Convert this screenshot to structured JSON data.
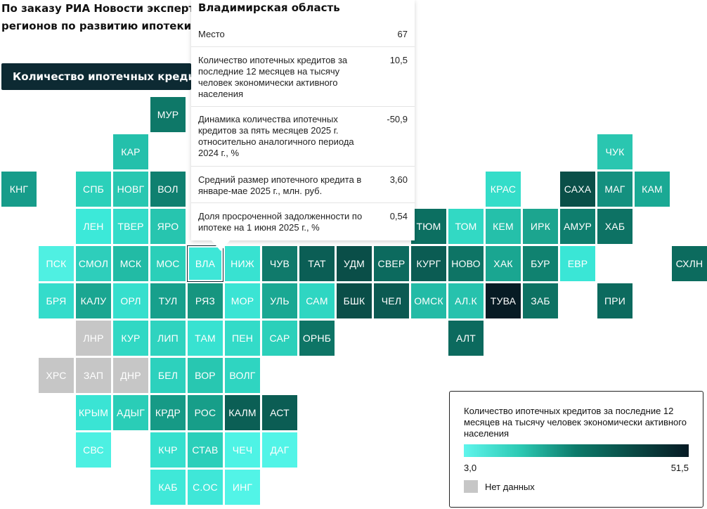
{
  "header": {
    "title": "По заказу РИА Новости эксперты регионов по развитию ипотеки"
  },
  "metric_select": {
    "label": "Количество ипотечных креди..."
  },
  "tooltip": {
    "region": "Владимирская область",
    "rows": [
      {
        "label": "Место",
        "value": "67"
      },
      {
        "label": "Количество ипотечных кредитов за последние 12 месяцев на тысячу человек экономически активного населения",
        "value": "10,5"
      },
      {
        "label": "Динамика количества ипотечных кредитов за пять месяцев 2025 г. относительно аналогичного периода 2024 г., %",
        "value": "-50,9"
      },
      {
        "label": "Средний размер ипотечного кредита в январе-мае 2025 г., млн. руб.",
        "value": "3,60"
      },
      {
        "label": "Доля просроченной задолженности по ипотеке на 1 июня 2025 г., %",
        "value": "0,54"
      }
    ]
  },
  "legend": {
    "title": "Количество ипотечных кредитов за последние 12 месяцев на тысячу человек экономически активного населения",
    "min_label": "3,0",
    "max_label": "51,5",
    "nodata_label": "Нет данных",
    "nodata_color": "#c6c6c6"
  },
  "tiles": [
    {
      "label": "МУР",
      "row": 0,
      "col": 4,
      "color": "#0e7868"
    },
    {
      "label": "КАР",
      "row": 1,
      "col": 3,
      "color": "#24c0ab"
    },
    {
      "label": "ЧУК",
      "row": 1,
      "col": 16,
      "color": "#2ac6b0"
    },
    {
      "label": "КНГ",
      "row": 2,
      "col": 0,
      "color": "#179c8a"
    },
    {
      "label": "СПБ",
      "row": 2,
      "col": 2,
      "color": "#2bd0ba"
    },
    {
      "label": "НОВГ",
      "row": 2,
      "col": 3,
      "color": "#29c7b1"
    },
    {
      "label": "ВОЛ",
      "row": 2,
      "col": 4,
      "color": "#0f8070"
    },
    {
      "label": "КРАС",
      "row": 2,
      "col": 13,
      "color": "#34ddc9"
    },
    {
      "label": "САХА",
      "row": 2,
      "col": 15,
      "color": "#0a4f48"
    },
    {
      "label": "МАГ",
      "row": 2,
      "col": 16,
      "color": "#14907f"
    },
    {
      "label": "КАМ",
      "row": 2,
      "col": 17,
      "color": "#1aa994"
    },
    {
      "label": "ЛЕН",
      "row": 3,
      "col": 2,
      "color": "#3ce9d9"
    },
    {
      "label": "ТВЕР",
      "row": 3,
      "col": 3,
      "color": "#33dcc9"
    },
    {
      "label": "ЯРО",
      "row": 3,
      "col": 4,
      "color": "#27c5af"
    },
    {
      "label": "ТЮМ",
      "row": 3,
      "col": 11,
      "color": "#0c6f61"
    },
    {
      "label": "ТОМ",
      "row": 3,
      "col": 12,
      "color": "#32d9c4"
    },
    {
      "label": "КЕМ",
      "row": 3,
      "col": 13,
      "color": "#25c0aa"
    },
    {
      "label": "ИРК",
      "row": 3,
      "col": 14,
      "color": "#1ca58f"
    },
    {
      "label": "АМУР",
      "row": 3,
      "col": 15,
      "color": "#0f7e6e"
    },
    {
      "label": "ХАБ",
      "row": 3,
      "col": 16,
      "color": "#0d7264"
    },
    {
      "label": "ПСК",
      "row": 4,
      "col": 1,
      "color": "#4ff0e2"
    },
    {
      "label": "СМОЛ",
      "row": 4,
      "col": 2,
      "color": "#2ecebb"
    },
    {
      "label": "МСК",
      "row": 4,
      "col": 3,
      "color": "#22bba5"
    },
    {
      "label": "МОС",
      "row": 4,
      "col": 4,
      "color": "#2bcfb9"
    },
    {
      "label": "ВЛА",
      "row": 4,
      "col": 5,
      "color": "#3ee6d7",
      "selected": true
    },
    {
      "label": "НИЖ",
      "row": 4,
      "col": 6,
      "color": "#38e2d1"
    },
    {
      "label": "ЧУВ",
      "row": 4,
      "col": 7,
      "color": "#107a6b"
    },
    {
      "label": "ТАТ",
      "row": 4,
      "col": 8,
      "color": "#0b5e55"
    },
    {
      "label": "УДМ",
      "row": 4,
      "col": 9,
      "color": "#0a4e48"
    },
    {
      "label": "СВЕР",
      "row": 4,
      "col": 10,
      "color": "#0c6a5e"
    },
    {
      "label": "КУРГ",
      "row": 4,
      "col": 11,
      "color": "#0b5c53"
    },
    {
      "label": "НОВО",
      "row": 4,
      "col": 12,
      "color": "#0e7465"
    },
    {
      "label": "ХАК",
      "row": 4,
      "col": 13,
      "color": "#1aa691"
    },
    {
      "label": "БУР",
      "row": 4,
      "col": 14,
      "color": "#108270"
    },
    {
      "label": "ЕВР",
      "row": 4,
      "col": 15,
      "color": "#3ae6d6"
    },
    {
      "label": "СХЛН",
      "row": 4,
      "col": 18,
      "color": "#0c6b5e"
    },
    {
      "label": "БРЯ",
      "row": 5,
      "col": 1,
      "color": "#34dccb"
    },
    {
      "label": "КАЛУ",
      "row": 5,
      "col": 2,
      "color": "#1aa691"
    },
    {
      "label": "ОРЛ",
      "row": 5,
      "col": 3,
      "color": "#36dfcd"
    },
    {
      "label": "ТУЛ",
      "row": 5,
      "col": 4,
      "color": "#17a08c"
    },
    {
      "label": "РЯЗ",
      "row": 5,
      "col": 5,
      "color": "#16957f"
    },
    {
      "label": "МОР",
      "row": 5,
      "col": 6,
      "color": "#3be4d4"
    },
    {
      "label": "УЛЬ",
      "row": 5,
      "col": 7,
      "color": "#1aa893"
    },
    {
      "label": "САМ",
      "row": 5,
      "col": 8,
      "color": "#2fd6c2"
    },
    {
      "label": "БШК",
      "row": 5,
      "col": 9,
      "color": "#0a4e48"
    },
    {
      "label": "ЧЕЛ",
      "row": 5,
      "col": 10,
      "color": "#0b5a52"
    },
    {
      "label": "ОМСК",
      "row": 5,
      "col": 11,
      "color": "#23bba6"
    },
    {
      "label": "АЛ.К",
      "row": 5,
      "col": 12,
      "color": "#27c2ad"
    },
    {
      "label": "ТУВА",
      "row": 5,
      "col": 13,
      "color": "#071b24"
    },
    {
      "label": "ЗАБ",
      "row": 5,
      "col": 14,
      "color": "#0d7263"
    },
    {
      "label": "ПРИ",
      "row": 5,
      "col": 16,
      "color": "#0c6a5e"
    },
    {
      "label": "ЛНР",
      "row": 6,
      "col": 2,
      "color": "#c6c6c6"
    },
    {
      "label": "КУР",
      "row": 6,
      "col": 3,
      "color": "#31d8c4"
    },
    {
      "label": "ЛИП",
      "row": 6,
      "col": 4,
      "color": "#2fd3bf"
    },
    {
      "label": "ТАМ",
      "row": 6,
      "col": 5,
      "color": "#38e2d1"
    },
    {
      "label": "ПЕН",
      "row": 6,
      "col": 6,
      "color": "#33dbc8"
    },
    {
      "label": "САР",
      "row": 6,
      "col": 7,
      "color": "#2bd0ba"
    },
    {
      "label": "ОРНБ",
      "row": 6,
      "col": 8,
      "color": "#0e7566"
    },
    {
      "label": "АЛТ",
      "row": 6,
      "col": 12,
      "color": "#0c6a5e"
    },
    {
      "label": "ХРС",
      "row": 7,
      "col": 1,
      "color": "#c6c6c6"
    },
    {
      "label": "ЗАП",
      "row": 7,
      "col": 2,
      "color": "#c6c6c6"
    },
    {
      "label": "ДНР",
      "row": 7,
      "col": 3,
      "color": "#c6c6c6"
    },
    {
      "label": "БЕЛ",
      "row": 7,
      "col": 4,
      "color": "#2dd1bd"
    },
    {
      "label": "ВОР",
      "row": 7,
      "col": 5,
      "color": "#28c7b1"
    },
    {
      "label": "ВОЛГ",
      "row": 7,
      "col": 6,
      "color": "#2fd5c1"
    },
    {
      "label": "КРЫМ",
      "row": 8,
      "col": 2,
      "color": "#3ae4d4"
    },
    {
      "label": "АДЫГ",
      "row": 8,
      "col": 3,
      "color": "#2acdb7"
    },
    {
      "label": "КРДР",
      "row": 8,
      "col": 4,
      "color": "#169a86"
    },
    {
      "label": "РОС",
      "row": 8,
      "col": 5,
      "color": "#179e89"
    },
    {
      "label": "КАЛМ",
      "row": 8,
      "col": 6,
      "color": "#0b5f55"
    },
    {
      "label": "АСТ",
      "row": 8,
      "col": 7,
      "color": "#0b5d54"
    },
    {
      "label": "СВС",
      "row": 9,
      "col": 2,
      "color": "#4df0e2"
    },
    {
      "label": "КЧР",
      "row": 9,
      "col": 4,
      "color": "#36e0ce"
    },
    {
      "label": "СТАВ",
      "row": 9,
      "col": 5,
      "color": "#2bcfba"
    },
    {
      "label": "ЧЕЧ",
      "row": 9,
      "col": 6,
      "color": "#4ef3e5"
    },
    {
      "label": "ДАГ",
      "row": 9,
      "col": 7,
      "color": "#52f4e7"
    },
    {
      "label": "КАБ",
      "row": 10,
      "col": 4,
      "color": "#3fe8d8"
    },
    {
      "label": "С.ОС",
      "row": 10,
      "col": 5,
      "color": "#3fe7d8"
    },
    {
      "label": "ИНГ",
      "row": 10,
      "col": 6,
      "color": "#52f4e7"
    }
  ]
}
